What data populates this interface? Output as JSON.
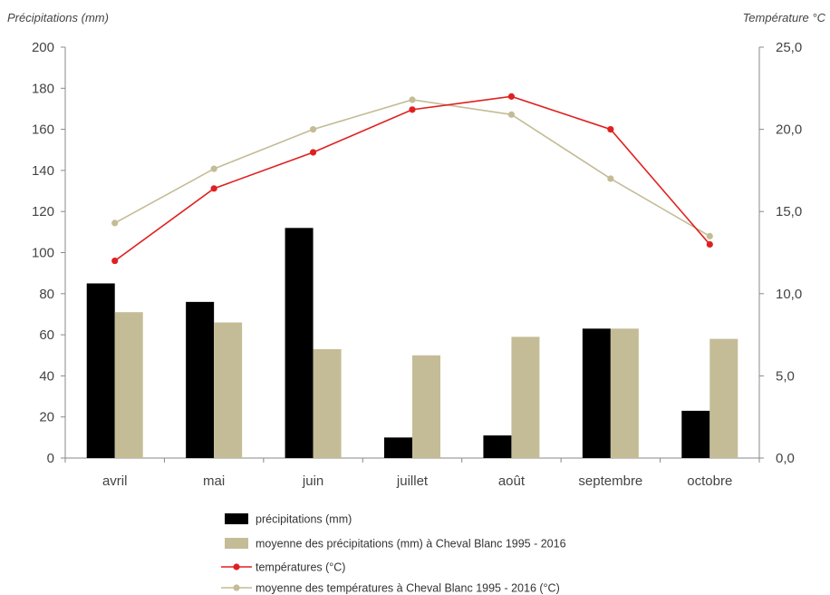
{
  "chart_data": {
    "type": "bar",
    "categories": [
      "avril",
      "mai",
      "juin",
      "juillet",
      "août",
      "septembre",
      "octobre"
    ],
    "left_axis": {
      "label": "Précipitations (mm)",
      "ylim": [
        0,
        200
      ],
      "ticks": [
        "0",
        "20",
        "40",
        "60",
        "80",
        "100",
        "120",
        "140",
        "160",
        "180",
        "200"
      ]
    },
    "right_axis": {
      "label": "Température °C",
      "ylim": [
        0,
        25
      ],
      "ticks": [
        "0,0",
        "5,0",
        "10,0",
        "15,0",
        "20,0",
        "25,0"
      ]
    },
    "series": [
      {
        "name": "précipitations (mm)",
        "kind": "bar",
        "axis": "left",
        "color": "#000000",
        "values": [
          85,
          76,
          112,
          10,
          11,
          63,
          23
        ]
      },
      {
        "name": "moyenne  des précipitations (mm) à Cheval Blanc 1995 - 2016",
        "kind": "bar",
        "axis": "left",
        "color": "#c3bc96",
        "values": [
          71,
          66,
          53,
          50,
          59,
          63,
          58
        ]
      },
      {
        "name": "températures (°C)",
        "kind": "line",
        "axis": "right",
        "color": "#e02020",
        "values": [
          12.0,
          16.4,
          18.6,
          21.2,
          22.0,
          20.0,
          13.0
        ]
      },
      {
        "name": "moyenne des températures à Cheval Blanc 1995 - 2016 (°C)",
        "kind": "line",
        "axis": "right",
        "color": "#c3bc96",
        "values": [
          14.3,
          17.6,
          20.0,
          21.8,
          20.9,
          17.0,
          13.5
        ]
      }
    ],
    "grid": false,
    "legend_position": "bottom"
  }
}
